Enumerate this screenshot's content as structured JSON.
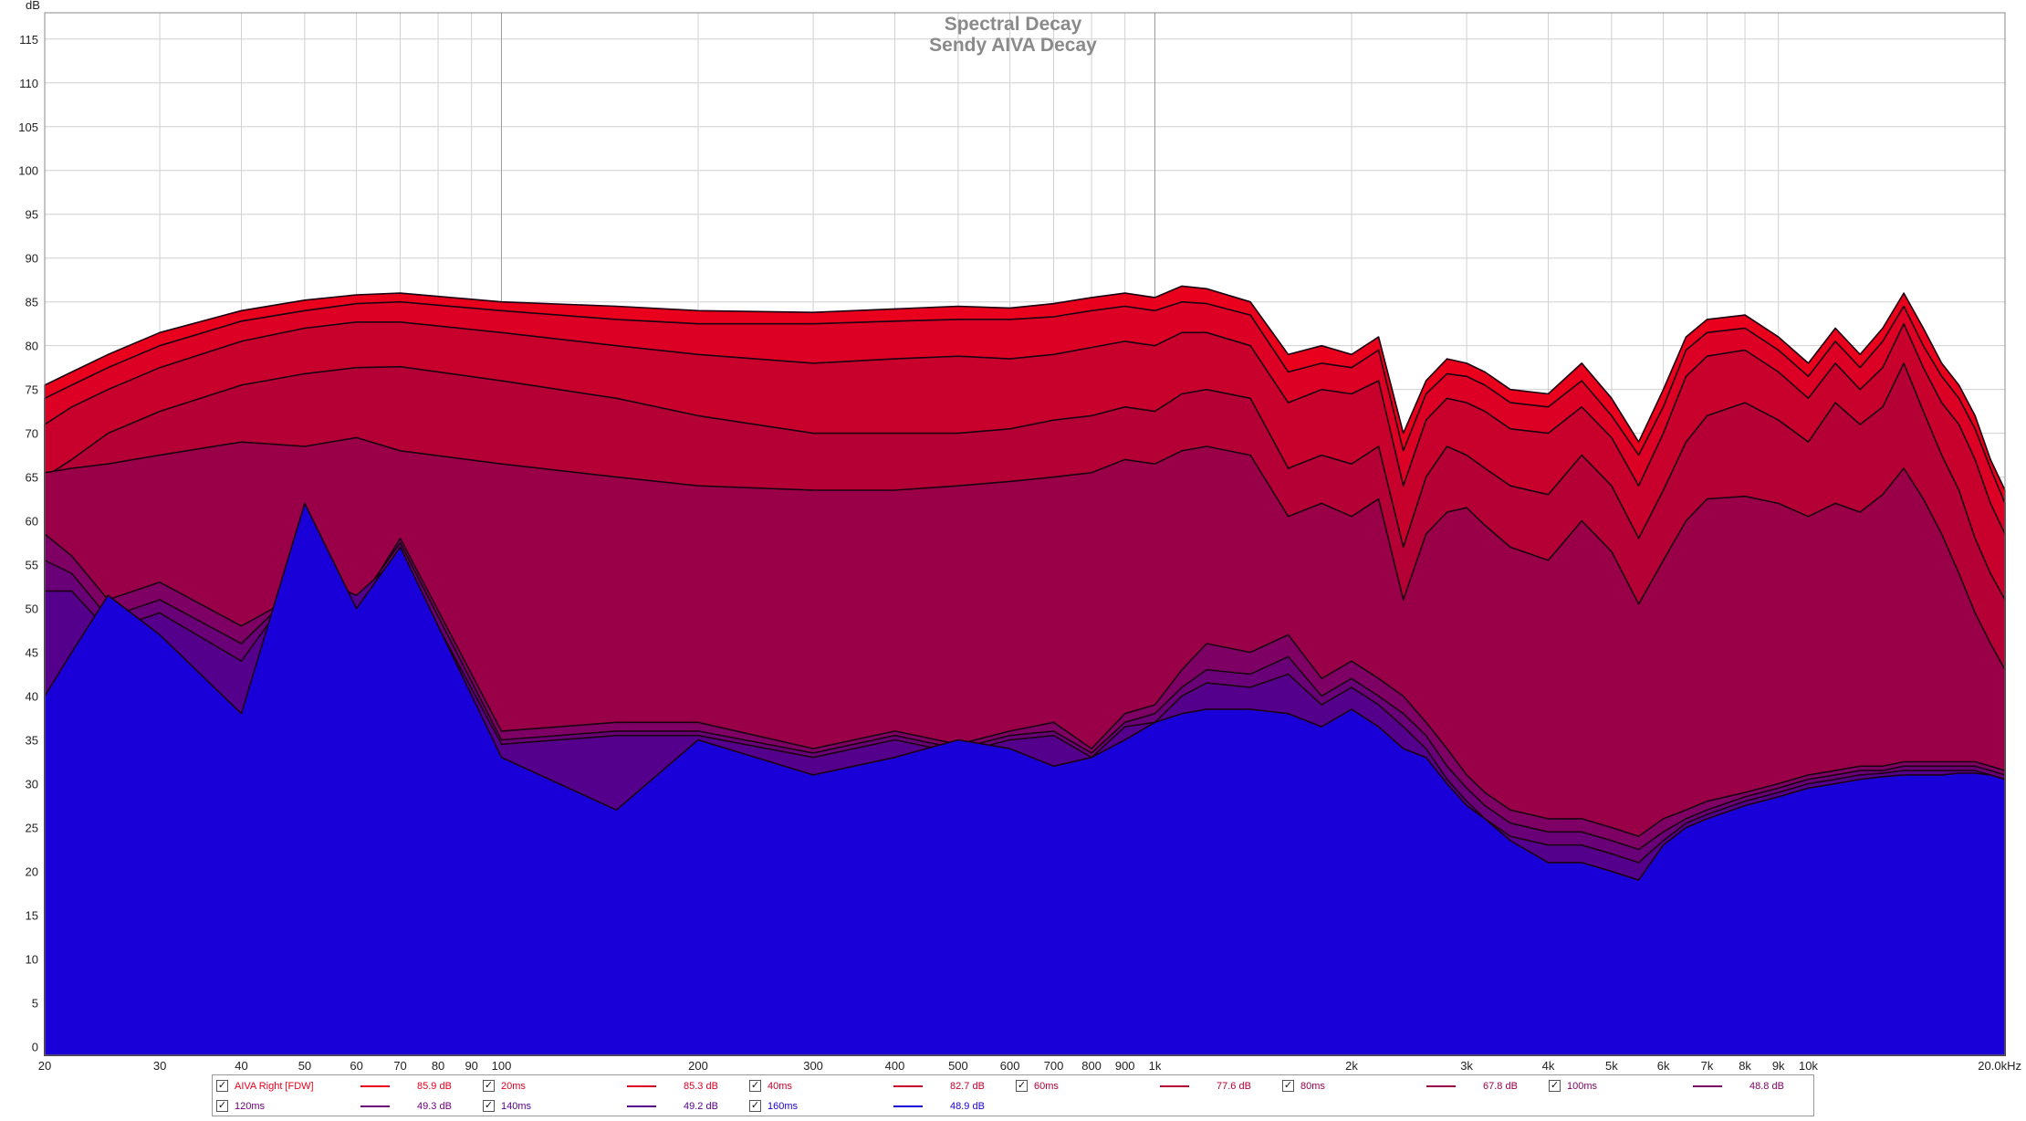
{
  "chart_data": {
    "type": "area",
    "title": "Spectral Decay",
    "subtitle": "Sendy AIVA Decay",
    "ylabel": "dB",
    "xlabel": "",
    "x_scale": "log",
    "xlim": [
      20,
      20000
    ],
    "ylim": [
      -1,
      118
    ],
    "grid": true,
    "y_ticks": [
      0,
      5,
      10,
      15,
      20,
      25,
      30,
      35,
      40,
      45,
      50,
      55,
      60,
      65,
      70,
      75,
      80,
      85,
      90,
      95,
      100,
      105,
      110,
      115
    ],
    "x_ticks": [
      {
        "v": 20,
        "label": "20"
      },
      {
        "v": 30,
        "label": "30"
      },
      {
        "v": 40,
        "label": "40"
      },
      {
        "v": 50,
        "label": "50"
      },
      {
        "v": 60,
        "label": "60"
      },
      {
        "v": 70,
        "label": "70"
      },
      {
        "v": 80,
        "label": "80"
      },
      {
        "v": 90,
        "label": "90"
      },
      {
        "v": 100,
        "label": "100"
      },
      {
        "v": 200,
        "label": "200"
      },
      {
        "v": 300,
        "label": "300"
      },
      {
        "v": 400,
        "label": "400"
      },
      {
        "v": 500,
        "label": "500"
      },
      {
        "v": 600,
        "label": "600"
      },
      {
        "v": 700,
        "label": "700"
      },
      {
        "v": 800,
        "label": "800"
      },
      {
        "v": 900,
        "label": "900"
      },
      {
        "v": 1000,
        "label": "1k"
      },
      {
        "v": 2000,
        "label": "2k"
      },
      {
        "v": 3000,
        "label": "3k"
      },
      {
        "v": 4000,
        "label": "4k"
      },
      {
        "v": 5000,
        "label": "5k"
      },
      {
        "v": 6000,
        "label": "6k"
      },
      {
        "v": 7000,
        "label": "7k"
      },
      {
        "v": 8000,
        "label": "8k"
      },
      {
        "v": 9000,
        "label": "9k"
      },
      {
        "v": 10000,
        "label": "10k"
      },
      {
        "v": 20000,
        "label": "20.0kHz"
      }
    ],
    "series": [
      {
        "name": "AIVA Right [FDW]",
        "level": "85.9 dB",
        "color": "#e8001c",
        "x": [
          20,
          22,
          25,
          30,
          40,
          50,
          60,
          70,
          100,
          150,
          200,
          300,
          400,
          500,
          600,
          700,
          800,
          900,
          1000,
          1100,
          1200,
          1400,
          1600,
          1800,
          2000,
          2200,
          2400,
          2600,
          2800,
          3000,
          3200,
          3500,
          4000,
          4500,
          5000,
          5500,
          6000,
          6500,
          7000,
          8000,
          9000,
          10000,
          11000,
          12000,
          13000,
          14000,
          15000,
          16000,
          17000,
          18000,
          19000,
          20000
        ],
        "y": [
          75.5,
          77,
          79,
          81.5,
          84,
          85.2,
          85.8,
          86,
          85,
          84.5,
          84,
          83.8,
          84.2,
          84.5,
          84.3,
          84.8,
          85.5,
          86,
          85.5,
          86.8,
          86.5,
          85,
          79,
          80,
          79,
          81,
          70,
          76,
          78.5,
          78,
          77,
          75,
          74.5,
          78,
          74,
          69,
          75,
          81,
          83,
          83.5,
          81,
          78,
          82,
          79,
          82,
          86,
          82,
          78,
          75.5,
          72,
          67,
          63.5
        ]
      },
      {
        "name": "20ms",
        "level": "85.3 dB",
        "color": "#dc0024",
        "x": [
          20,
          22,
          25,
          30,
          40,
          50,
          60,
          70,
          100,
          150,
          200,
          300,
          400,
          500,
          600,
          700,
          800,
          900,
          1000,
          1100,
          1200,
          1400,
          1600,
          1800,
          2000,
          2200,
          2400,
          2600,
          2800,
          3000,
          3200,
          3500,
          4000,
          4500,
          5000,
          5500,
          6000,
          6500,
          7000,
          8000,
          9000,
          10000,
          11000,
          12000,
          13000,
          14000,
          15000,
          16000,
          17000,
          18000,
          19000,
          20000
        ],
        "y": [
          74,
          75.5,
          77.5,
          80,
          82.8,
          84,
          84.8,
          85,
          84,
          83,
          82.5,
          82.5,
          82.8,
          83,
          83,
          83.3,
          84,
          84.5,
          84,
          85,
          84.8,
          83.5,
          77,
          78,
          77.5,
          79.5,
          68,
          74.5,
          76.8,
          76.5,
          75.5,
          73.5,
          73,
          76,
          72,
          67.5,
          73,
          79.5,
          81.5,
          82,
          79.5,
          76.5,
          80.5,
          77.5,
          80.5,
          84.5,
          80,
          76.5,
          74,
          70.5,
          66,
          62
        ]
      },
      {
        "name": "40ms",
        "level": "82.7 dB",
        "color": "#c8002c",
        "x": [
          20,
          22,
          25,
          30,
          40,
          50,
          60,
          70,
          100,
          150,
          200,
          300,
          400,
          500,
          600,
          700,
          800,
          900,
          1000,
          1100,
          1200,
          1400,
          1600,
          1800,
          2000,
          2200,
          2400,
          2600,
          2800,
          3000,
          3200,
          3500,
          4000,
          4500,
          5000,
          5500,
          6000,
          6500,
          7000,
          8000,
          9000,
          10000,
          11000,
          12000,
          13000,
          14000,
          15000,
          16000,
          17000,
          18000,
          19000,
          20000
        ],
        "y": [
          71,
          73,
          75,
          77.5,
          80.5,
          82,
          82.7,
          82.7,
          81.5,
          80,
          79,
          78,
          78.5,
          78.8,
          78.5,
          79,
          79.8,
          80.5,
          80,
          81.5,
          81.5,
          80,
          73.5,
          75,
          74.5,
          76,
          64,
          71.5,
          74,
          73.5,
          72.5,
          70.5,
          70,
          73,
          69.5,
          64,
          70,
          76.5,
          78.8,
          79.5,
          77,
          74,
          78,
          75,
          77.5,
          82.5,
          77.5,
          73.5,
          71,
          67,
          62,
          58.5
        ]
      },
      {
        "name": "60ms",
        "level": "77.6 dB",
        "color": "#b40034",
        "x": [
          20,
          22,
          25,
          30,
          40,
          50,
          60,
          70,
          100,
          150,
          200,
          300,
          400,
          500,
          600,
          700,
          800,
          900,
          1000,
          1100,
          1200,
          1400,
          1600,
          1800,
          2000,
          2200,
          2400,
          2600,
          2800,
          3000,
          3200,
          3500,
          4000,
          4500,
          5000,
          5500,
          6000,
          6500,
          7000,
          8000,
          9000,
          10000,
          11000,
          12000,
          13000,
          14000,
          15000,
          16000,
          17000,
          18000,
          19000,
          20000
        ],
        "y": [
          65,
          67,
          70,
          72.5,
          75.5,
          76.8,
          77.5,
          77.6,
          76,
          74,
          72,
          70,
          70,
          70,
          70.5,
          71.5,
          72,
          73,
          72.5,
          74.5,
          75,
          74,
          66,
          67.5,
          66.5,
          68.5,
          57,
          65,
          68.5,
          67.5,
          66,
          64,
          63,
          67.5,
          64,
          58,
          63.5,
          69,
          72,
          73.5,
          71.5,
          69,
          73.5,
          71,
          73,
          78,
          72.5,
          67.5,
          63.5,
          58,
          54,
          51
        ]
      },
      {
        "name": "80ms",
        "level": "67.8 dB",
        "color": "#9a0048",
        "x": [
          20,
          22,
          25,
          30,
          40,
          50,
          60,
          70,
          100,
          150,
          200,
          300,
          400,
          500,
          600,
          700,
          800,
          900,
          1000,
          1100,
          1200,
          1400,
          1600,
          1800,
          2000,
          2200,
          2400,
          2600,
          2800,
          3000,
          3200,
          3500,
          4000,
          4500,
          5000,
          5500,
          6000,
          6500,
          7000,
          8000,
          9000,
          10000,
          11000,
          12000,
          13000,
          14000,
          15000,
          16000,
          17000,
          18000,
          19000,
          20000
        ],
        "y": [
          65.5,
          66,
          66.5,
          67.5,
          69,
          68.5,
          69.5,
          68,
          66.5,
          65,
          64,
          63.5,
          63.5,
          64,
          64.5,
          65,
          65.5,
          67,
          66.5,
          68,
          68.5,
          67.5,
          60.5,
          62,
          60.5,
          62.5,
          51,
          58.5,
          61,
          61.5,
          59.5,
          57,
          55.5,
          60,
          56.5,
          50.5,
          55.5,
          60,
          62.5,
          62.8,
          62,
          60.5,
          62,
          61,
          63,
          66,
          62.5,
          58.5,
          54,
          49.5,
          46,
          43
        ]
      },
      {
        "name": "100ms",
        "level": "48.8 dB",
        "color": "#7e0064",
        "x": [
          20,
          22,
          25,
          30,
          40,
          50,
          60,
          70,
          100,
          150,
          200,
          300,
          400,
          500,
          600,
          700,
          800,
          900,
          1000,
          1100,
          1200,
          1400,
          1600,
          1800,
          2000,
          2200,
          2400,
          2600,
          2800,
          3000,
          3200,
          3500,
          4000,
          4500,
          5000,
          5500,
          6000,
          6500,
          7000,
          8000,
          9000,
          10000,
          11000,
          12000,
          13000,
          14000,
          15000,
          16000,
          17000,
          18000,
          19000,
          20000
        ],
        "y": [
          58.5,
          56,
          51,
          53,
          48,
          52,
          50,
          58,
          36,
          37,
          37,
          34,
          36,
          34.5,
          36,
          37,
          34,
          38,
          39,
          43,
          46,
          45,
          47,
          42,
          44,
          42,
          40,
          37,
          34,
          31,
          29,
          27,
          26,
          26,
          25,
          24,
          26,
          27,
          28,
          29,
          30,
          31,
          31.5,
          32,
          32,
          32.5,
          32.5,
          32.5,
          32.5,
          32.5,
          32,
          31.5
        ]
      },
      {
        "name": "120ms",
        "level": "49.3 dB",
        "color": "#6a0078",
        "x": [
          20,
          22,
          25,
          30,
          40,
          50,
          60,
          70,
          100,
          150,
          200,
          300,
          400,
          500,
          600,
          700,
          800,
          900,
          1000,
          1100,
          1200,
          1400,
          1600,
          1800,
          2000,
          2200,
          2400,
          2600,
          2800,
          3000,
          3200,
          3500,
          4000,
          4500,
          5000,
          5500,
          6000,
          6500,
          7000,
          8000,
          9000,
          10000,
          11000,
          12000,
          13000,
          14000,
          15000,
          16000,
          17000,
          18000,
          19000,
          20000
        ],
        "y": [
          55.5,
          54,
          49,
          51,
          46,
          53,
          50.5,
          57.5,
          35,
          36,
          36,
          33.5,
          35.5,
          34,
          35.5,
          36,
          33.5,
          37,
          38,
          41,
          43,
          42.5,
          44.5,
          40,
          42,
          40,
          38,
          35.5,
          32,
          29.5,
          27.5,
          25.5,
          24.5,
          24.5,
          23.5,
          22.5,
          24.5,
          26,
          27,
          28.5,
          29.5,
          30.5,
          31,
          31.5,
          31.5,
          32,
          32,
          32,
          32,
          32,
          31.5,
          31
        ]
      },
      {
        "name": "140ms",
        "level": "49.2 dB",
        "color": "#54008c",
        "x": [
          20,
          22,
          25,
          30,
          40,
          50,
          60,
          70,
          100,
          150,
          200,
          300,
          400,
          500,
          600,
          700,
          800,
          900,
          1000,
          1100,
          1200,
          1400,
          1600,
          1800,
          2000,
          2200,
          2400,
          2600,
          2800,
          3000,
          3200,
          3500,
          4000,
          4500,
          5000,
          5500,
          6000,
          6500,
          7000,
          8000,
          9000,
          10000,
          11000,
          12000,
          13000,
          14000,
          15000,
          16000,
          17000,
          18000,
          19000,
          20000
        ],
        "y": [
          52,
          52,
          47.5,
          49.5,
          44,
          54,
          51.5,
          56,
          34.5,
          35.5,
          35.5,
          33,
          35,
          33.5,
          35,
          35.5,
          33,
          36.5,
          37,
          40,
          41.5,
          41,
          42.5,
          39,
          41,
          39,
          36.5,
          34,
          30.5,
          28,
          26,
          24,
          23,
          23,
          22,
          21,
          23.5,
          25.5,
          26.5,
          28,
          29,
          30,
          30.5,
          31,
          31.2,
          31.5,
          31.5,
          31.5,
          31.5,
          31.5,
          31,
          30.5
        ]
      },
      {
        "name": "160ms",
        "level": "48.9 dB",
        "color": "#1a00d8",
        "x": [
          20,
          22,
          25,
          30,
          40,
          50,
          60,
          70,
          100,
          150,
          200,
          300,
          400,
          500,
          600,
          700,
          800,
          900,
          1000,
          1100,
          1200,
          1400,
          1600,
          1800,
          2000,
          2200,
          2400,
          2600,
          2800,
          3000,
          3200,
          3500,
          4000,
          4500,
          5000,
          5500,
          6000,
          6500,
          7000,
          8000,
          9000,
          10000,
          11000,
          12000,
          13000,
          14000,
          15000,
          16000,
          17000,
          18000,
          19000,
          20000
        ],
        "y": [
          40,
          45,
          51.5,
          47,
          38,
          62,
          50,
          57,
          33,
          27,
          35,
          31,
          33,
          35,
          34,
          32,
          33,
          35,
          37,
          38,
          38.5,
          38.5,
          38,
          36.5,
          38.5,
          36.5,
          34,
          33,
          30,
          27.5,
          26,
          23.5,
          21,
          21,
          20,
          19,
          23,
          25,
          26,
          27.5,
          28.5,
          29.5,
          30,
          30.5,
          30.8,
          31,
          31,
          31,
          31.2,
          31.2,
          31,
          30.5
        ]
      }
    ],
    "legend_placement": "bottom"
  },
  "legend": {
    "checked_mark": "✓"
  }
}
